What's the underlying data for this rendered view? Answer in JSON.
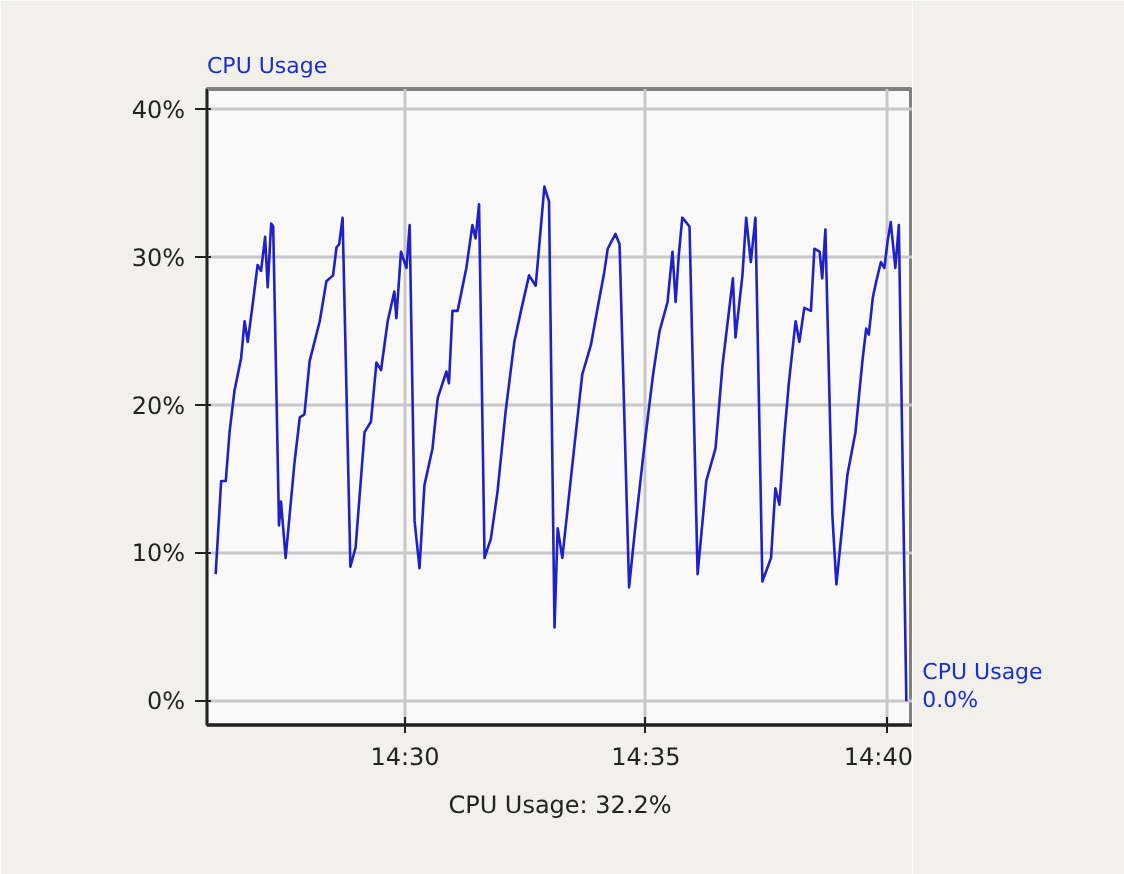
{
  "chart_data": {
    "type": "line",
    "title": "CPU Usage",
    "xlim": [
      14.4315,
      14.6757
    ],
    "ylim": [
      -1.6,
      41.4
    ],
    "xticks": [
      {
        "value": 14.5,
        "label": "14:30"
      },
      {
        "value": 14.5833,
        "label": "14:35"
      },
      {
        "value": 14.6667,
        "label": "14:40"
      }
    ],
    "yticks": [
      {
        "value": 0,
        "label": "0%"
      },
      {
        "value": 10,
        "label": "10%"
      },
      {
        "value": 20,
        "label": "20%"
      },
      {
        "value": 30,
        "label": "30%"
      },
      {
        "value": 40,
        "label": "40%"
      }
    ],
    "grid": true,
    "marker": "none",
    "line_style": "solid",
    "annotations": [
      "CPU Usage: 32.2%"
    ],
    "series": [
      {
        "name": "CPU Usage",
        "color": "#2020c8",
        "value_labels": [
          null,
          null,
          null,
          null,
          null,
          null,
          null,
          null,
          null,
          null,
          null,
          null,
          null,
          null,
          null,
          null,
          null,
          null,
          null,
          null,
          null,
          null,
          null,
          null,
          null,
          null,
          null,
          null,
          null,
          null,
          null,
          null,
          null,
          null,
          null,
          null,
          null,
          null,
          null,
          null,
          null,
          null,
          null,
          null,
          null,
          null,
          null,
          null,
          null,
          null,
          null,
          null,
          null,
          null,
          null,
          null,
          null,
          null,
          null,
          null,
          null,
          null,
          null,
          null,
          null,
          null,
          null,
          null,
          null,
          null,
          null,
          null,
          null,
          null,
          null,
          null,
          null,
          null,
          null,
          null,
          null,
          null,
          null,
          null,
          null,
          null,
          null,
          null,
          null,
          null,
          null,
          null,
          null,
          null,
          null,
          null,
          null,
          null,
          null,
          null,
          null,
          null,
          null,
          null,
          null,
          null,
          null,
          null,
          null,
          null,
          null,
          null,
          null,
          null,
          null,
          null,
          null,
          null,
          null,
          null,
          null,
          null,
          null,
          null,
          "0.0%"
        ],
        "x": [
          14.4345,
          14.4364,
          14.438,
          14.4393,
          14.441,
          14.4433,
          14.4445,
          14.4456,
          14.4474,
          14.449,
          14.4502,
          14.4516,
          14.4525,
          14.4537,
          14.4544,
          14.4564,
          14.4571,
          14.4587,
          14.4618,
          14.4636,
          14.4652,
          14.467,
          14.4705,
          14.4728,
          14.4751,
          14.4763,
          14.4772,
          14.4784,
          14.4811,
          14.4829,
          14.486,
          14.4882,
          14.4901,
          14.4917,
          14.494,
          14.4963,
          14.497,
          14.4986,
          14.5005,
          14.5016,
          14.5033,
          14.505,
          14.5067,
          14.5095,
          14.5113,
          14.5143,
          14.5152,
          14.5164,
          14.5182,
          14.5212,
          14.5233,
          14.5244,
          14.5256,
          14.5275,
          14.5297,
          14.532,
          14.5348,
          14.5378,
          14.5401,
          14.5429,
          14.5452,
          14.5482,
          14.5498,
          14.5517,
          14.5528,
          14.5544,
          14.5586,
          14.5613,
          14.5643,
          14.5666,
          14.5689,
          14.5701,
          14.5728,
          14.5742,
          14.5775,
          14.5797,
          14.5828,
          14.5858,
          14.588,
          14.5908,
          14.5925,
          14.5936,
          14.5947,
          14.5959,
          14.5984,
          14.6012,
          14.6042,
          14.6074,
          14.6098,
          14.6134,
          14.6143,
          14.6167,
          14.618,
          14.6196,
          14.6212,
          14.6236,
          14.6266,
          14.6281,
          14.6295,
          14.6312,
          14.6328,
          14.6351,
          14.6364,
          14.6381,
          14.6404,
          14.6416,
          14.6434,
          14.6443,
          14.6454,
          14.6478,
          14.6492,
          14.653,
          14.6558,
          14.6582,
          14.6595,
          14.6604,
          14.6618,
          14.663,
          14.6646,
          14.6658,
          14.6669,
          14.668,
          14.6696,
          14.6708,
          14.6734
        ],
        "values": [
          8.6,
          14.9,
          14.9,
          18.2,
          21.0,
          23.2,
          25.7,
          24.3,
          27.0,
          29.5,
          29.1,
          31.4,
          28.0,
          32.3,
          32.1,
          11.9,
          13.5,
          9.7,
          16.2,
          19.2,
          19.4,
          23.0,
          25.7,
          28.4,
          28.8,
          30.7,
          30.9,
          32.7,
          9.1,
          10.4,
          18.2,
          18.9,
          22.9,
          22.4,
          25.7,
          27.7,
          25.9,
          30.4,
          29.3,
          32.2,
          12.2,
          9.0,
          14.6,
          17.1,
          20.5,
          22.3,
          21.5,
          26.4,
          26.4,
          29.3,
          32.2,
          31.3,
          33.6,
          9.7,
          11.0,
          14.2,
          19.6,
          24.3,
          26.4,
          28.8,
          28.1,
          34.8,
          33.8,
          5.0,
          11.7,
          9.7,
          17.3,
          22.1,
          24.1,
          26.6,
          29.0,
          30.6,
          31.6,
          30.9,
          7.7,
          11.9,
          17.3,
          22.1,
          25.0,
          27.0,
          30.4,
          27.0,
          30.2,
          32.7,
          32.1,
          8.6,
          14.9,
          17.1,
          22.7,
          28.6,
          24.6,
          28.8,
          32.7,
          29.7,
          32.7,
          8.1,
          9.7,
          14.4,
          13.3,
          18.0,
          21.6,
          25.7,
          24.3,
          26.6,
          26.4,
          30.6,
          30.4,
          28.6,
          31.9,
          12.6,
          7.9,
          15.3,
          18.2,
          23.0,
          25.2,
          24.8,
          27.3,
          28.4,
          29.7,
          29.3,
          31.1,
          32.4,
          29.3,
          32.2,
          0.0
        ]
      }
    ]
  }
}
